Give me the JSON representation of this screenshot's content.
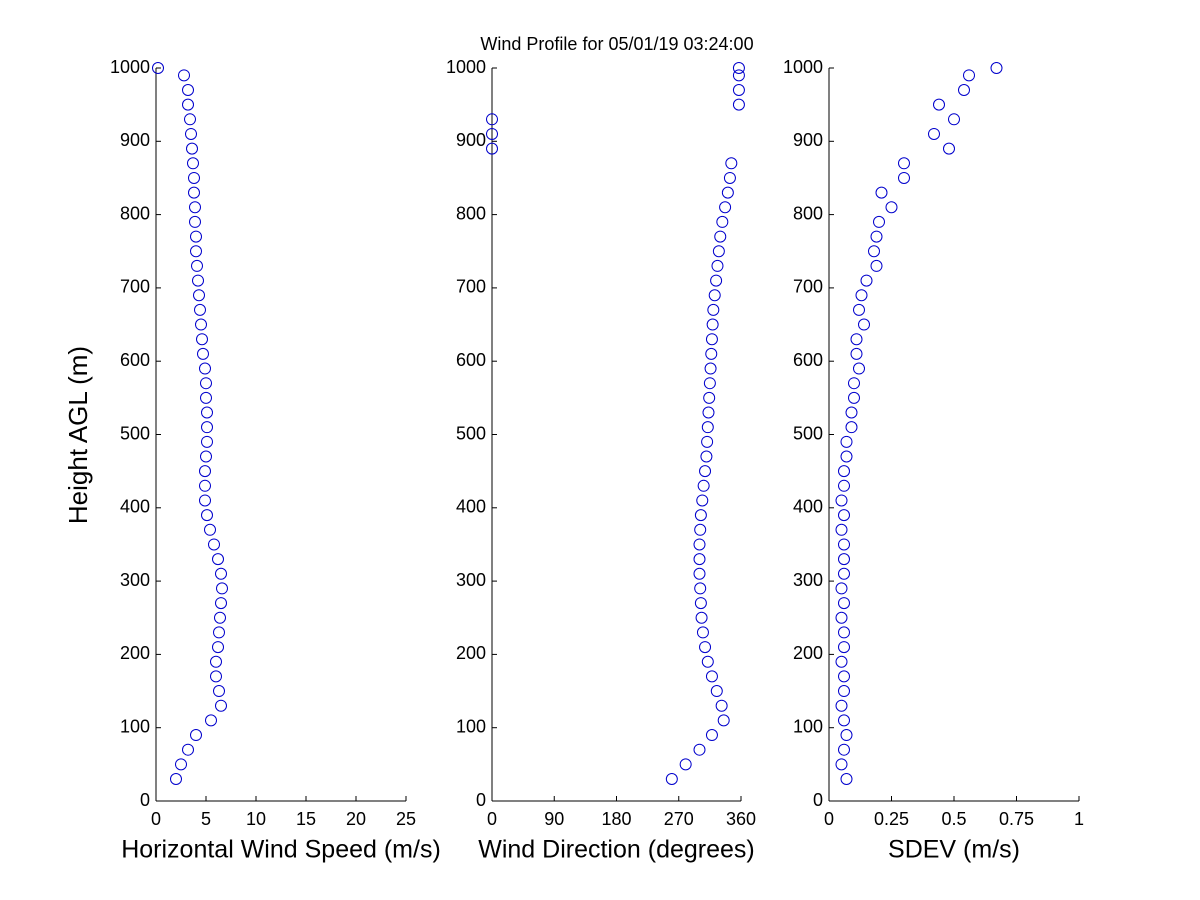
{
  "chart_data": [
    {
      "type": "scatter",
      "title": "Wind Profile for  05/01/19 03:24:00",
      "x_label": "Horizontal Wind Speed (m/s)",
      "y_label": "Height AGL (m)",
      "color": "#0000cc",
      "xlim": [
        0,
        25
      ],
      "xticks": [
        0,
        5,
        10,
        15,
        20,
        25
      ],
      "ylim": [
        0,
        1000
      ],
      "yticks": [
        0,
        100,
        200,
        300,
        400,
        500,
        600,
        700,
        800,
        900,
        1000
      ],
      "y": [
        30,
        50,
        70,
        90,
        110,
        130,
        150,
        170,
        190,
        210,
        230,
        250,
        270,
        290,
        310,
        330,
        350,
        370,
        390,
        410,
        430,
        450,
        470,
        490,
        510,
        530,
        550,
        570,
        590,
        610,
        630,
        650,
        670,
        690,
        710,
        730,
        750,
        770,
        790,
        810,
        830,
        850,
        870,
        890,
        910,
        930,
        950,
        970,
        990,
        1000
      ],
      "x": [
        2,
        2.5,
        3.2,
        4,
        5.5,
        6.5,
        6.3,
        6,
        6,
        6.2,
        6.3,
        6.4,
        6.5,
        6.6,
        6.5,
        6.2,
        5.8,
        5.4,
        5.1,
        4.9,
        4.9,
        4.9,
        5,
        5.1,
        5.1,
        5.1,
        5,
        5,
        4.9,
        4.7,
        4.6,
        4.5,
        4.4,
        4.3,
        4.2,
        4.1,
        4,
        4,
        3.9,
        3.9,
        3.8,
        3.8,
        3.7,
        3.6,
        3.5,
        3.4,
        3.2,
        3.2,
        2.8,
        0.2
      ]
    },
    {
      "type": "scatter",
      "x_label": "Wind Direction (degrees)",
      "color": "#0000cc",
      "xlim": [
        0,
        360
      ],
      "xticks": [
        0,
        90,
        180,
        270,
        360
      ],
      "ylim": [
        0,
        1000
      ],
      "yticks": [
        0,
        100,
        200,
        300,
        400,
        500,
        600,
        700,
        800,
        900,
        1000
      ],
      "y": [
        30,
        50,
        70,
        90,
        110,
        130,
        150,
        170,
        190,
        210,
        230,
        250,
        270,
        290,
        310,
        330,
        350,
        370,
        390,
        410,
        430,
        450,
        470,
        490,
        510,
        530,
        550,
        570,
        590,
        610,
        630,
        650,
        670,
        690,
        710,
        730,
        750,
        770,
        790,
        810,
        830,
        850,
        870,
        890,
        910,
        930,
        950,
        970,
        990,
        1000
      ],
      "x": [
        260,
        280,
        300,
        318,
        335,
        332,
        325,
        318,
        312,
        308,
        305,
        303,
        302,
        301,
        300,
        300,
        300,
        301,
        302,
        304,
        306,
        308,
        310,
        311,
        312,
        313,
        314,
        315,
        316,
        317,
        318,
        319,
        320,
        322,
        324,
        326,
        328,
        330,
        333,
        337,
        341,
        344,
        346,
        0,
        0,
        0,
        357,
        357,
        357,
        357
      ]
    },
    {
      "type": "scatter",
      "x_label": "SDEV  (m/s)",
      "color": "#0000cc",
      "xlim": [
        0,
        1
      ],
      "xticks": [
        0,
        0.25,
        0.5,
        0.75,
        1
      ],
      "ylim": [
        0,
        1000
      ],
      "yticks": [
        0,
        100,
        200,
        300,
        400,
        500,
        600,
        700,
        800,
        900,
        1000
      ],
      "y": [
        30,
        50,
        70,
        90,
        110,
        130,
        150,
        170,
        190,
        210,
        230,
        250,
        270,
        290,
        310,
        330,
        350,
        370,
        390,
        410,
        430,
        450,
        470,
        490,
        510,
        530,
        550,
        570,
        590,
        610,
        630,
        650,
        670,
        690,
        710,
        730,
        750,
        770,
        790,
        810,
        830,
        850,
        870,
        890,
        910,
        930,
        950,
        970,
        990,
        1000
      ],
      "x": [
        0.07,
        0.05,
        0.06,
        0.07,
        0.06,
        0.05,
        0.06,
        0.06,
        0.05,
        0.06,
        0.06,
        0.05,
        0.06,
        0.05,
        0.06,
        0.06,
        0.06,
        0.05,
        0.06,
        0.05,
        0.06,
        0.06,
        0.07,
        0.07,
        0.09,
        0.09,
        0.1,
        0.1,
        0.12,
        0.11,
        0.11,
        0.14,
        0.12,
        0.13,
        0.15,
        0.19,
        0.18,
        0.19,
        0.2,
        0.25,
        0.21,
        0.3,
        0.3,
        0.48,
        0.42,
        0.5,
        0.44,
        0.54,
        0.56,
        0.67
      ]
    }
  ]
}
